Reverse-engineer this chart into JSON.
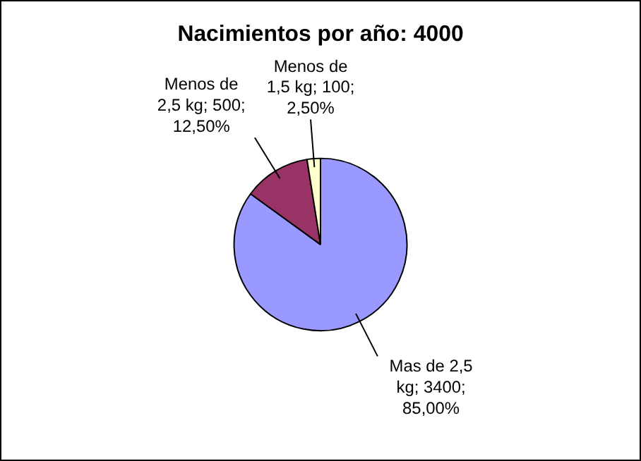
{
  "chart_data": {
    "type": "pie",
    "title": "Nacimientos por año: 4000",
    "categories": [
      "Mas de 2,5 kg",
      "Menos de 2,5 kg",
      "Menos de 1,5 kg"
    ],
    "values": [
      3400,
      500,
      100
    ],
    "value_labels": [
      "3400; 85,00%",
      "500; 12,50%",
      "100; 2,50%"
    ],
    "colors": [
      "#9999ff",
      "#993366",
      "#ffffcc"
    ],
    "legend": false
  }
}
